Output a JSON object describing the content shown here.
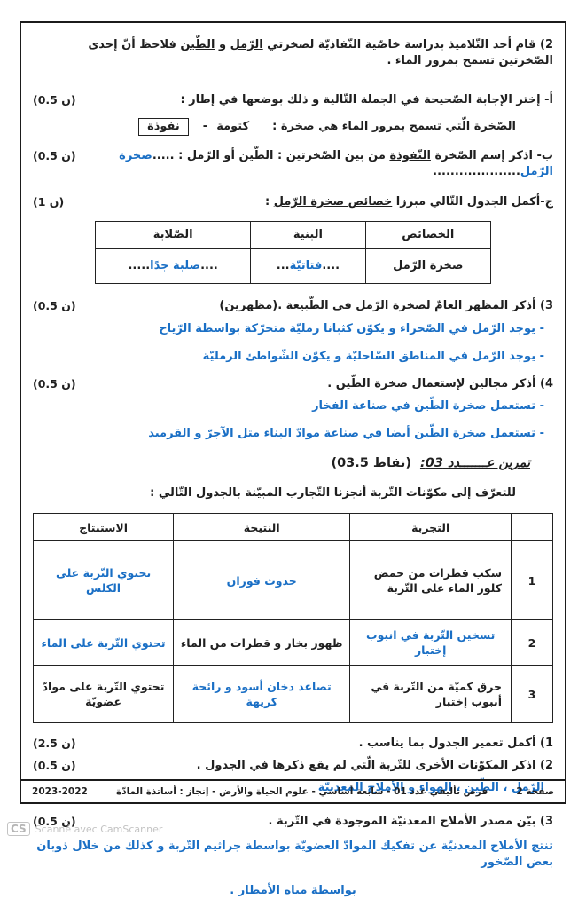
{
  "colors": {
    "answer_blue": "#1a6fc5",
    "ink": "#1f1f1f"
  },
  "exercise2": {
    "intro": {
      "num": "2)",
      "pre": " قام أحد التّلاميذ بدراسة خاصّية النّفاذيّة لصخرتي ",
      "u1": "الرّمل",
      "mid": " و ",
      "u2": "الطّين",
      "post": " فلاحظ أنّ إحدى الصّخرتين تسمح بمرور الماء ."
    },
    "part_a": {
      "label": "أ- إختر الإجابة الصّحيحة في الجملة التّالية و ذلك بوضعها في إطار :",
      "score": "(0.5 ن)",
      "sentence": "الصّخرة الّتي تسمح بمرور الماء هي صخرة :",
      "option1": "كتومة",
      "separator": "-",
      "option2": "نفوذة"
    },
    "part_b": {
      "pre": "ب- اذكر إسم الصّخرة ",
      "underlined": "النّفوذة",
      "post": " من بين الصّخرتين : الطّين أو الرّمل : ",
      "dots_before": ".....",
      "answer": "صخرة الرّمل",
      "dots_after": "....................",
      "score": "(0.5 ن)"
    },
    "part_c": {
      "pre": "ج-أكمل الجدول التّالي مبرزا ",
      "underlined": "خصائص صخرة الرّمل",
      "post": " :",
      "score": "(1 ن)"
    },
    "table1": {
      "headers": [
        "الخصائص",
        "البنية",
        "الصّلابة"
      ],
      "row": {
        "label": "صخرة الرّمل",
        "c1": {
          "pre": "....",
          "answer": "فتاتيّة",
          "post": "..."
        },
        "c2": {
          "pre": "....",
          "answer": "صلبة جدًا",
          "post": "....."
        }
      }
    },
    "q3": {
      "label": "3)  أذكر المظهر العامّ لصخرة الرّمل في الطّبيعة .(مظهرين)",
      "score": "(0.5 ن)",
      "answers": [
        "- يوجد الرّمل في الصّحراء و يكوّن كثبانا رمليّة متحرّكة بواسطة الرّياح",
        "- يوجد الرّمل في المناطق السّاحليّة و يكوّن الشّواطئ الرمليّة"
      ]
    },
    "q4": {
      "label": "4)  أذكر مجالين لإستعمال صخرة الطّين .",
      "score": "(0.5 ن)",
      "answers": [
        "- تستعمل صخرة الطّين في صناعة الفخار",
        "- تستعمل صخرة الطّين أيضا في صناعة موادّ البناء مثل الآجرّ و القرميد"
      ]
    }
  },
  "exercise3": {
    "title": "تمرين عـــــــدد 03:",
    "points": "(03.5 نقاط)",
    "intro": "للتعرّف إلى مكوّنات التّربة أنجزنا التّجارب المبيّنة بالجدول التّالي :",
    "table2": {
      "headers": {
        "experiment": "التجربة",
        "result": "النتيجة",
        "conclusion": "الاستنتاج"
      },
      "rows": [
        {
          "num": "1",
          "experiment": "سكب قطرات من حمض كلور الماء على التّربة",
          "result": "حدوث فوران",
          "conclusion": "تحتوي التّربة على الكلس"
        },
        {
          "num": "2",
          "experiment": "تسخين التّربة في انبوب إختبار",
          "result": "ظهور بخار و قطرات من الماء",
          "conclusion": "تحتوي التّربة على الماء"
        },
        {
          "num": "3",
          "experiment": "حرق كميّة من التّربة في أنبوب إختبار",
          "result": "تصاعد دخان أسود و رائحة كريهة",
          "conclusion": "تحتوي التّربة على موادّ عضويّة"
        }
      ]
    },
    "q1": {
      "label": "1) أكمل تعمير الجدول بما يناسب .",
      "score": "(2.5 ن)"
    },
    "q2": {
      "label": "2) اذكر المكوّنات الأخرى للتّربة الّتي لم يقع ذكرها في الجدول .",
      "score": "(0.5 ن)",
      "answer": "الرّمل ، الطّين ، الهواء و الأملاح المعدنيّة"
    },
    "q3": {
      "label": "3) بيّن مصدر الأملاح المعدنيّة الموجودة في التّربة .",
      "score": "(0.5 ن)",
      "answer_line1": "تنتج الأملاح المعدنيّة عن تفكيك الموادّ العضويّة بواسطة جراثيم التّربة و كذلك من خلال ذوبان بعض الصّخور",
      "answer_line2": "بواسطة مياه الأمطار ."
    }
  },
  "footer": {
    "page_label": "صفحة 2",
    "info": "فرض تأليفي عدد 01 -  سابعة أساسي -  علوم الحياة والأرض - إنجاز : أساتذة المادّة",
    "year": "2023-2022"
  },
  "watermark": {
    "logo": "CS",
    "text": "Scanné avec CamScanner"
  }
}
